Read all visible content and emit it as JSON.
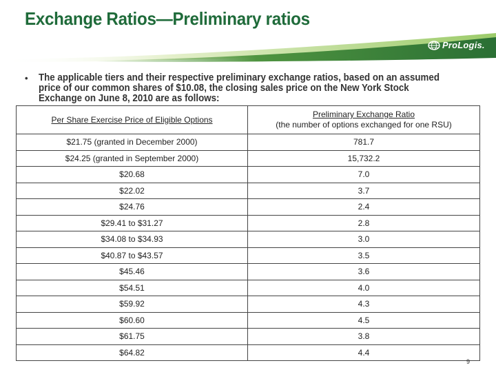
{
  "slide": {
    "title": "Exchange Ratios—Preliminary ratios",
    "logo_text": "ProLogis.",
    "bullet": "The applicable tiers and their respective preliminary exchange ratios, based on an assumed price of our common shares of $10.08, the closing sales price on the New York Stock Exchange on June 8, 2010 are as follows:",
    "page_number": "9"
  },
  "table": {
    "col1_header": "Per Share Exercise Price of Eligible Options",
    "col2_header": "Preliminary Exchange Ratio",
    "col2_subheader": "(the number of options exchanged for one RSU)",
    "rows": [
      {
        "price": "$21.75 (granted in December 2000)",
        "ratio": "781.7"
      },
      {
        "price": "$24.25 (granted in September 2000)",
        "ratio": "15,732.2"
      },
      {
        "price": "$20.68",
        "ratio": "7.0"
      },
      {
        "price": "$22.02",
        "ratio": "3.7"
      },
      {
        "price": "$24.76",
        "ratio": "2.4"
      },
      {
        "price": "$29.41 to $31.27",
        "ratio": "2.8"
      },
      {
        "price": "$34.08 to $34.93",
        "ratio": "3.0"
      },
      {
        "price": "$40.87 to $43.57",
        "ratio": "3.5"
      },
      {
        "price": "$45.46",
        "ratio": "3.6"
      },
      {
        "price": "$54.51",
        "ratio": "4.0"
      },
      {
        "price": "$59.92",
        "ratio": "4.3"
      },
      {
        "price": "$60.60",
        "ratio": "4.5"
      },
      {
        "price": "$61.75",
        "ratio": "3.8"
      },
      {
        "price": "$64.82",
        "ratio": "4.4"
      }
    ]
  },
  "colors": {
    "title": "#1f6b3a",
    "swoosh_dark": "#2f7a3a",
    "swoosh_light": "#b9d98a"
  }
}
